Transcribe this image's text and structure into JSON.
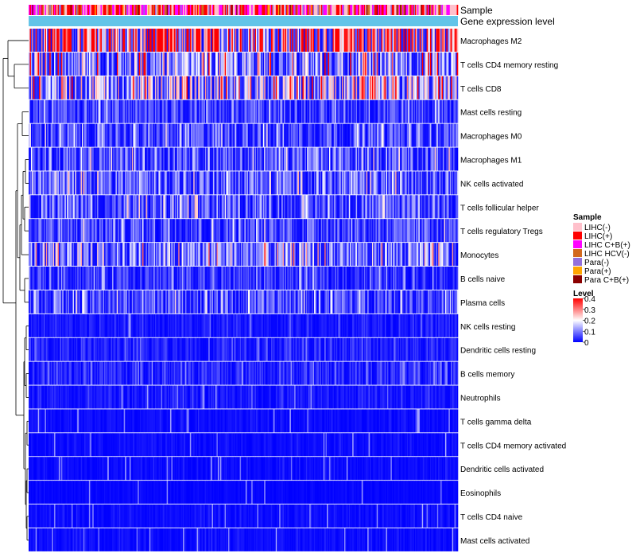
{
  "chart_data": {
    "type": "heatmap",
    "title": "",
    "annotation_tracks": [
      {
        "key": "sample",
        "label": "Sample"
      },
      {
        "key": "level",
        "label": "Gene expression level"
      }
    ],
    "rows": [
      {
        "label": "Macrophages M2",
        "mean": 0.3
      },
      {
        "label": "T cells CD4 memory resting",
        "mean": 0.14
      },
      {
        "label": "T cells CD8",
        "mean": 0.17
      },
      {
        "label": "Mast cells resting",
        "mean": 0.06
      },
      {
        "label": "Macrophages M0",
        "mean": 0.07
      },
      {
        "label": "Macrophages M1",
        "mean": 0.08
      },
      {
        "label": "NK cells activated",
        "mean": 0.09
      },
      {
        "label": "T cells follicular helper",
        "mean": 0.08
      },
      {
        "label": "T cells regulatory  Tregs",
        "mean": 0.07
      },
      {
        "label": "Monocytes",
        "mean": 0.11
      },
      {
        "label": "B cells naive",
        "mean": 0.05
      },
      {
        "label": "Plasma cells",
        "mean": 0.07
      },
      {
        "label": "NK cells resting",
        "mean": 0.02
      },
      {
        "label": "Dendritic cells resting",
        "mean": 0.03
      },
      {
        "label": "B cells memory",
        "mean": 0.04
      },
      {
        "label": "Neutrophils",
        "mean": 0.02
      },
      {
        "label": "T cells gamma delta",
        "mean": 0.01
      },
      {
        "label": "T cells CD4 memory activated",
        "mean": 0.01
      },
      {
        "label": "Dendritic cells activated",
        "mean": 0.01
      },
      {
        "label": "Eosinophils",
        "mean": 0.005
      },
      {
        "label": "T cells CD4 naive",
        "mean": 0.01
      },
      {
        "label": "Mast cells activated",
        "mean": 0.01
      }
    ],
    "sample_legend": {
      "title": "Sample",
      "entries": [
        {
          "label": "LIHC(-)",
          "color": "#ffc0cb"
        },
        {
          "label": "LIHC(+)",
          "color": "#ff0000"
        },
        {
          "label": "LIHC C+B(+)",
          "color": "#ff00ff"
        },
        {
          "label": "LIHC HCV(-)",
          "color": "#d2691e"
        },
        {
          "label": "Para(-)",
          "color": "#9370db"
        },
        {
          "label": "Para(+)",
          "color": "#ffa500"
        },
        {
          "label": "Para C+B(+)",
          "color": "#8b0000"
        }
      ]
    },
    "level_legend": {
      "title": "Level",
      "range": [
        0,
        0.4
      ],
      "ticks": [
        "0.4",
        "0.3",
        "0.2",
        "0.1",
        "0"
      ],
      "colors": [
        "#0000ff",
        "#ffffff",
        "#ff0000"
      ]
    },
    "level_track_color": "#63c4e8",
    "n_columns": 370
  }
}
